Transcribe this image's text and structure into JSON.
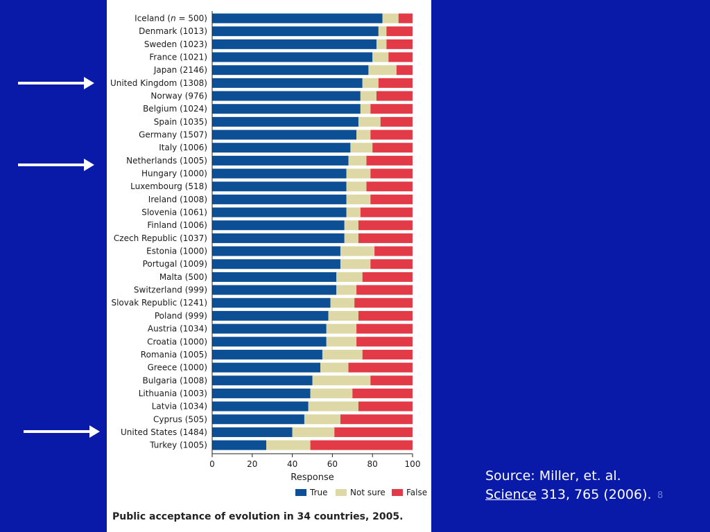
{
  "colors": {
    "background": "#0a1aa8",
    "true": "#0d4f95",
    "not_sure": "#ddd8a5",
    "false": "#e23a47",
    "arrow": "#ffffff"
  },
  "source": {
    "line1": "Source: Miller, et. al.",
    "journal": "Science",
    "citation": " 313, 765 (2006)."
  },
  "slide_number": "8",
  "chart_data": {
    "type": "bar",
    "orientation": "horizontal",
    "stacked": true,
    "title": "Public acceptance of evolution in 34 countries, 2005.",
    "xlabel": "Response",
    "xlim": [
      0,
      100
    ],
    "xticks": [
      "0",
      "20",
      "40",
      "60",
      "80",
      "100"
    ],
    "grid": false,
    "legend_position": "bottom-right",
    "categories": [
      "Iceland (n = 500)",
      "Denmark (1013)",
      "Sweden (1023)",
      "France (1021)",
      "Japan (2146)",
      "United Kingdom (1308)",
      "Norway (976)",
      "Belgium (1024)",
      "Spain (1035)",
      "Germany (1507)",
      "Italy (1006)",
      "Netherlands (1005)",
      "Hungary (1000)",
      "Luxembourg (518)",
      "Ireland (1008)",
      "Slovenia (1061)",
      "Finland (1006)",
      "Czech Republic (1037)",
      "Estonia (1000)",
      "Portugal (1009)",
      "Malta (500)",
      "Switzerland (999)",
      "Slovak Republic (1241)",
      "Poland (999)",
      "Austria (1034)",
      "Croatia (1000)",
      "Romania (1005)",
      "Greece (1000)",
      "Bulgaria (1008)",
      "Lithuania (1003)",
      "Latvia (1034)",
      "Cyprus (505)",
      "United States (1484)",
      "Turkey (1005)"
    ],
    "series": [
      {
        "name": "True",
        "values": [
          85,
          83,
          82,
          80,
          78,
          75,
          74,
          74,
          73,
          72,
          69,
          68,
          67,
          67,
          67,
          67,
          66,
          66,
          64,
          64,
          62,
          62,
          59,
          58,
          57,
          57,
          55,
          54,
          50,
          49,
          48,
          46,
          40,
          27
        ]
      },
      {
        "name": "Not sure",
        "values": [
          8,
          4,
          5,
          8,
          14,
          8,
          8,
          5,
          11,
          7,
          11,
          9,
          12,
          10,
          12,
          7,
          7,
          7,
          17,
          15,
          13,
          10,
          12,
          15,
          15,
          15,
          20,
          14,
          29,
          21,
          25,
          18,
          21,
          22
        ]
      },
      {
        "name": "False",
        "values": [
          7,
          13,
          13,
          12,
          8,
          17,
          18,
          21,
          16,
          21,
          20,
          23,
          21,
          23,
          21,
          26,
          27,
          27,
          19,
          21,
          25,
          28,
          29,
          27,
          28,
          28,
          25,
          32,
          21,
          30,
          27,
          36,
          39,
          51
        ]
      }
    ],
    "highlighted_categories": [
      "United Kingdom (1308)",
      "Netherlands (1005)",
      "United States (1484)"
    ]
  }
}
